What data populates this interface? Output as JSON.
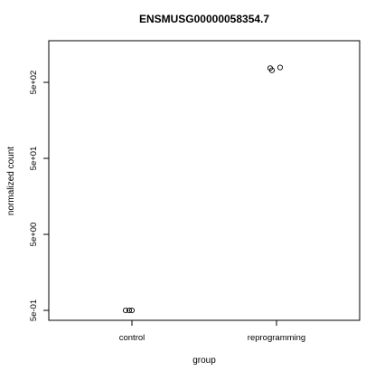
{
  "chart_data": {
    "type": "scatter",
    "title": "ENSMUSG00000058354.7",
    "xlabel": "group",
    "ylabel": "normalized count",
    "y_scale": "log",
    "categories": [
      "control",
      "reprogramming"
    ],
    "y_ticks": [
      {
        "value": 0.5,
        "label": "5e-01"
      },
      {
        "value": 5,
        "label": "5e+00"
      },
      {
        "value": 50,
        "label": "5e+01"
      },
      {
        "value": 500,
        "label": "5e+02"
      }
    ],
    "ylim": [
      0.4,
      1000
    ],
    "grid": false,
    "legend": "none",
    "points": [
      {
        "category": "control",
        "y": 0.5
      },
      {
        "category": "control",
        "y": 0.5
      },
      {
        "category": "control",
        "y": 0.5
      },
      {
        "category": "reprogramming",
        "y": 770
      },
      {
        "category": "reprogramming",
        "y": 720
      },
      {
        "category": "reprogramming",
        "y": 785
      }
    ]
  }
}
